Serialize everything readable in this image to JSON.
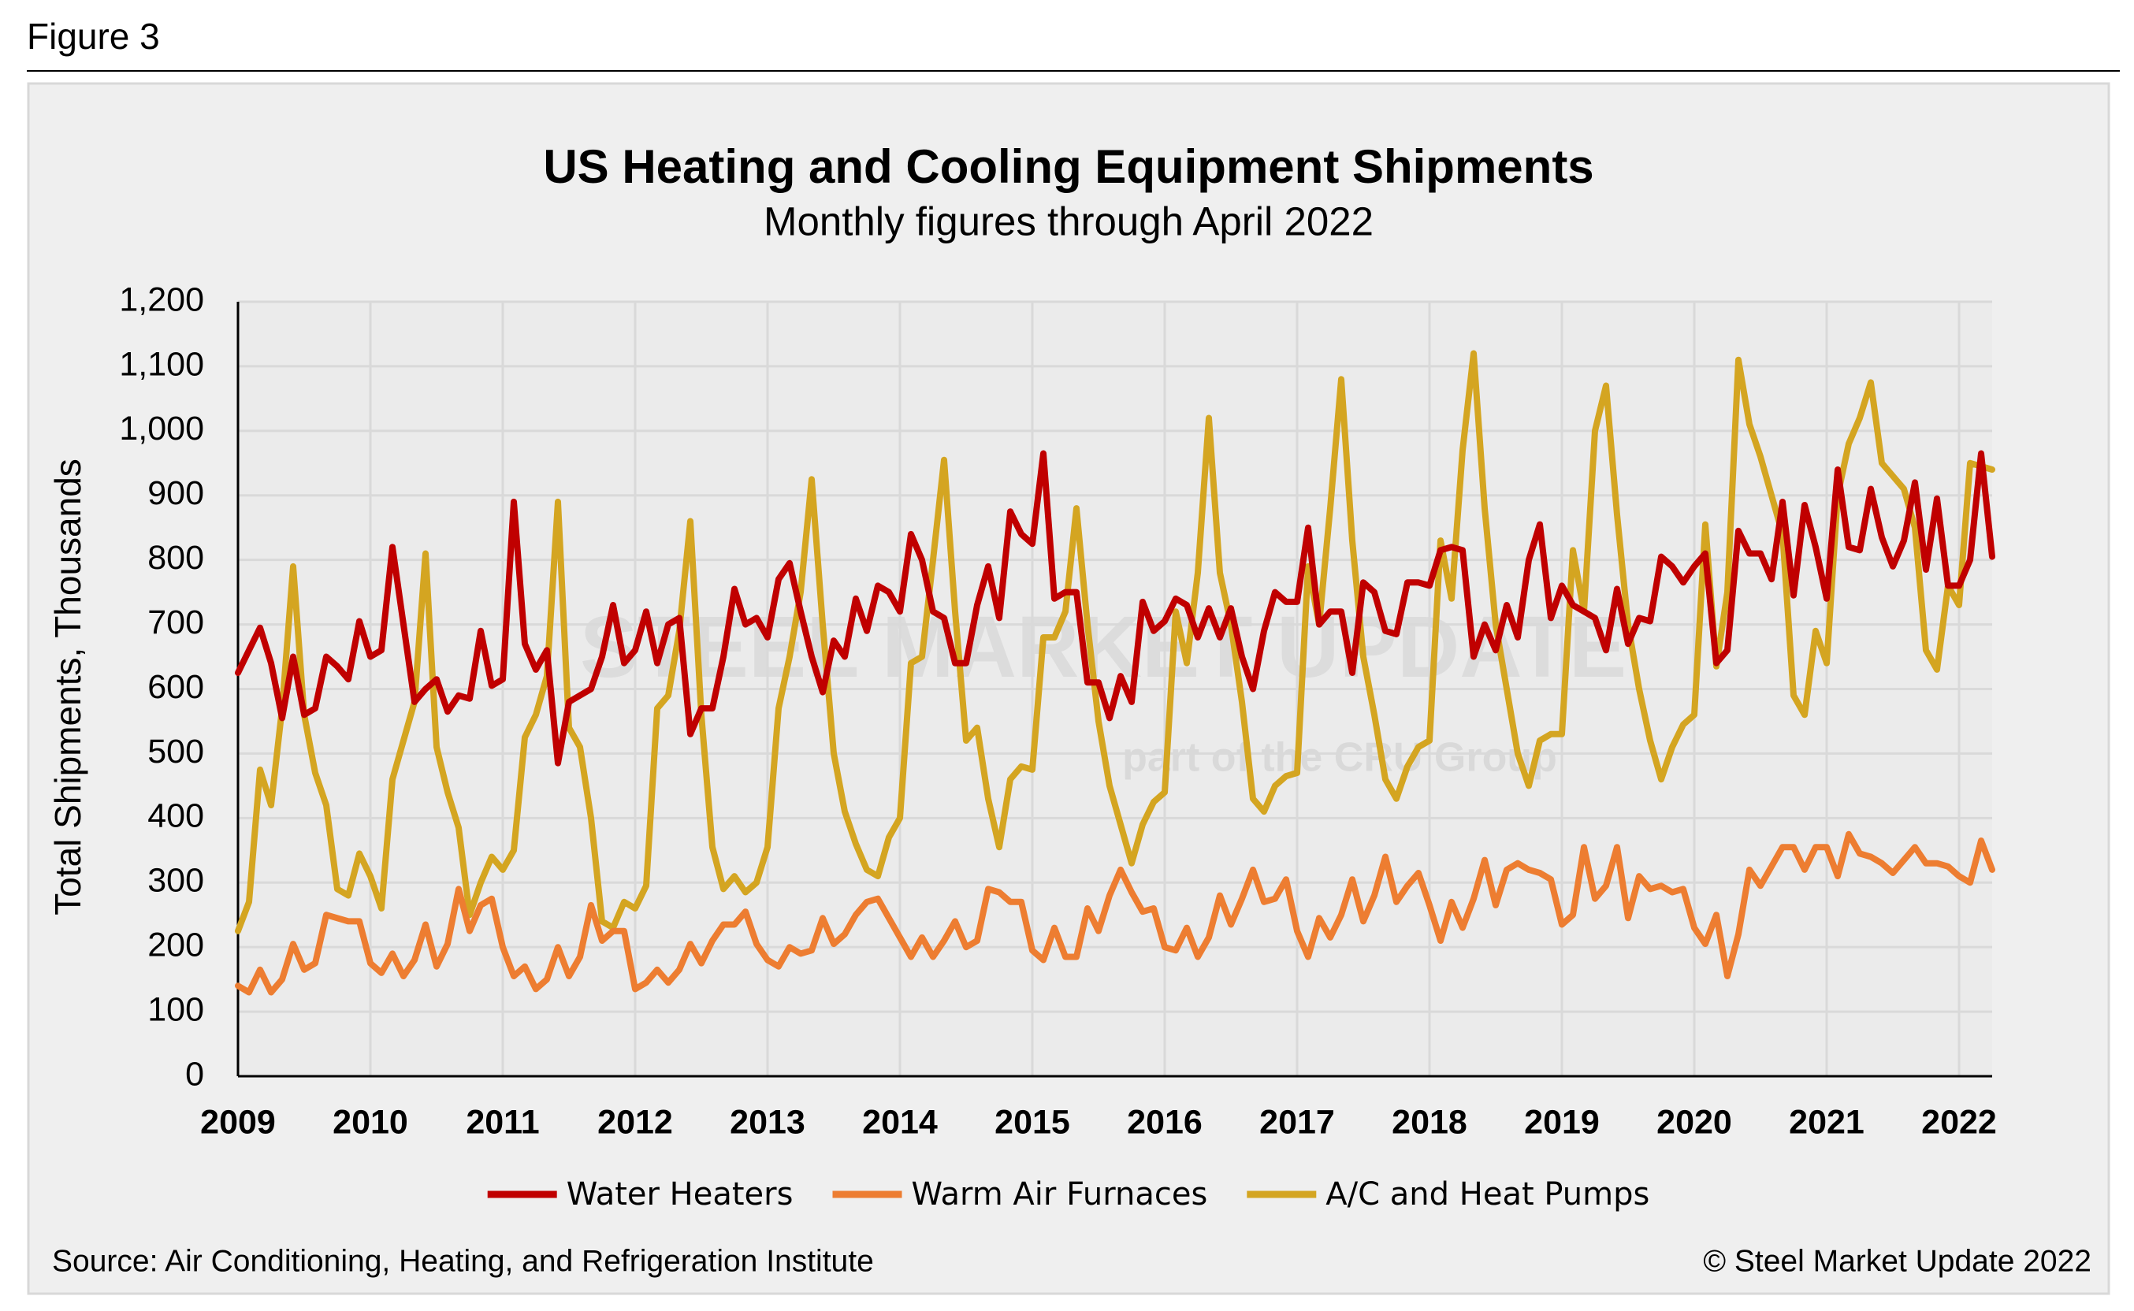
{
  "figure_label": "Figure 3",
  "chart_data": {
    "type": "line",
    "title": "US Heating and Cooling Equipment Shipments",
    "subtitle": "Monthly figures through April 2022",
    "y_axis_label": "Total Shipments, Thousands",
    "source": "Source: Air Conditioning, Heating, and Refrigeration Institute",
    "copyright": "© Steel Market Update 2022",
    "watermark": [
      "STEEL MARKET UPDATE",
      "part of the CRU Group"
    ],
    "categories": [
      "2009",
      null,
      null,
      null,
      null,
      null,
      null,
      null,
      null,
      null,
      null,
      null,
      "2010",
      null,
      null,
      null,
      null,
      null,
      null,
      null,
      null,
      null,
      null,
      null,
      "2011",
      null,
      null,
      null,
      null,
      null,
      null,
      null,
      null,
      null,
      null,
      null,
      "2012",
      null,
      null,
      null,
      null,
      null,
      null,
      null,
      null,
      null,
      null,
      null,
      "2013",
      null,
      null,
      null,
      null,
      null,
      null,
      null,
      null,
      null,
      null,
      null,
      "2014",
      null,
      null,
      null,
      null,
      null,
      null,
      null,
      null,
      null,
      null,
      null,
      "2015",
      null,
      null,
      null,
      null,
      null,
      null,
      null,
      null,
      null,
      null,
      null,
      "2016",
      null,
      null,
      null,
      null,
      null,
      null,
      null,
      null,
      null,
      null,
      null,
      "2017",
      null,
      null,
      null,
      null,
      null,
      null,
      null,
      null,
      null,
      null,
      null,
      "2018",
      null,
      null,
      null,
      null,
      null,
      null,
      null,
      null,
      null,
      null,
      null,
      "2019",
      null,
      null,
      null,
      null,
      null,
      null,
      null,
      null,
      null,
      null,
      null,
      "2020",
      null,
      null,
      null,
      null,
      null,
      null,
      null,
      null,
      null,
      null,
      null,
      "2021",
      null,
      null,
      null,
      null,
      null,
      null,
      null,
      null,
      null,
      null,
      null,
      "2022",
      null,
      null,
      null
    ],
    "series": [
      {
        "name": "Water Heaters",
        "color": "#c00000",
        "values": [
          625,
          660,
          695,
          640,
          555,
          650,
          560,
          570,
          650,
          635,
          615,
          705,
          650,
          660,
          820,
          700,
          580,
          600,
          615,
          565,
          590,
          585,
          690,
          605,
          615,
          890,
          670,
          630,
          660,
          485,
          580,
          590,
          600,
          650,
          730,
          640,
          660,
          720,
          640,
          700,
          710,
          530,
          570,
          570,
          650,
          755,
          700,
          710,
          680,
          770,
          795,
          720,
          650,
          595,
          675,
          650,
          740,
          690,
          760,
          750,
          720,
          840,
          800,
          720,
          710,
          640,
          640,
          730,
          790,
          710,
          875,
          840,
          825,
          965,
          740,
          750,
          750,
          610,
          610,
          555,
          620,
          580,
          735,
          690,
          705,
          740,
          730,
          680,
          725,
          680,
          725,
          650,
          600,
          690,
          750,
          735,
          735,
          850,
          700,
          720,
          720,
          625,
          765,
          750,
          690,
          685,
          765,
          765,
          760,
          815,
          820,
          815,
          650,
          700,
          660,
          730,
          680,
          800,
          855,
          710,
          760,
          730,
          720,
          710,
          660,
          755,
          670,
          710,
          705,
          805,
          790,
          765,
          790,
          810,
          640,
          660,
          845,
          810,
          810,
          770,
          890,
          745,
          885,
          820,
          740,
          940,
          820,
          815,
          910,
          835,
          790,
          830,
          920,
          785,
          895,
          760,
          760,
          800,
          965,
          805
        ]
      },
      {
        "name": "Warm Air Furnaces",
        "color": "#ed7d31",
        "values": [
          140,
          130,
          165,
          130,
          150,
          205,
          165,
          175,
          250,
          245,
          240,
          240,
          175,
          160,
          190,
          155,
          180,
          235,
          170,
          205,
          290,
          225,
          265,
          275,
          200,
          155,
          170,
          135,
          150,
          200,
          155,
          185,
          265,
          210,
          225,
          225,
          135,
          145,
          165,
          145,
          165,
          205,
          175,
          210,
          235,
          235,
          255,
          205,
          180,
          170,
          200,
          190,
          195,
          245,
          205,
          220,
          250,
          270,
          275,
          245,
          215,
          185,
          215,
          185,
          210,
          240,
          200,
          210,
          290,
          285,
          270,
          270,
          195,
          180,
          230,
          185,
          185,
          260,
          225,
          280,
          320,
          285,
          255,
          260,
          200,
          195,
          230,
          185,
          215,
          280,
          235,
          275,
          320,
          270,
          275,
          305,
          225,
          185,
          245,
          215,
          250,
          305,
          240,
          280,
          340,
          270,
          295,
          315,
          265,
          210,
          270,
          230,
          275,
          335,
          265,
          320,
          330,
          320,
          315,
          305,
          235,
          250,
          355,
          275,
          295,
          355,
          245,
          310,
          290,
          295,
          285,
          290,
          230,
          205,
          250,
          155,
          220,
          320,
          295,
          325,
          355,
          355,
          320,
          355,
          355,
          310,
          375,
          345,
          340,
          330,
          315,
          335,
          355,
          330,
          330,
          325,
          310,
          300,
          365,
          320
        ]
      },
      {
        "name": "A/C and Heat Pumps",
        "color": "#d4a521",
        "values": [
          225,
          270,
          475,
          420,
          570,
          790,
          560,
          470,
          420,
          290,
          280,
          345,
          310,
          260,
          460,
          520,
          580,
          810,
          510,
          440,
          385,
          250,
          300,
          340,
          320,
          350,
          525,
          560,
          620,
          890,
          540,
          510,
          400,
          240,
          230,
          270,
          260,
          295,
          570,
          590,
          690,
          860,
          560,
          355,
          290,
          310,
          285,
          300,
          355,
          570,
          650,
          750,
          925,
          700,
          500,
          410,
          360,
          320,
          310,
          370,
          400,
          640,
          650,
          800,
          955,
          720,
          520,
          540,
          430,
          355,
          460,
          480,
          475,
          680,
          680,
          720,
          880,
          700,
          550,
          450,
          390,
          330,
          390,
          425,
          440,
          720,
          640,
          780,
          1020,
          780,
          700,
          580,
          430,
          410,
          450,
          465,
          470,
          790,
          700,
          880,
          1080,
          830,
          650,
          560,
          460,
          430,
          480,
          510,
          520,
          830,
          740,
          970,
          1120,
          880,
          700,
          600,
          500,
          450,
          520,
          530,
          530,
          815,
          720,
          1000,
          1070,
          870,
          700,
          600,
          520,
          460,
          510,
          545,
          560,
          855,
          635,
          750,
          1110,
          1010,
          960,
          900,
          840,
          590,
          560,
          690,
          640,
          900,
          980,
          1020,
          1075,
          950,
          930,
          910,
          850,
          660,
          630,
          760,
          730,
          950,
          945,
          940
        ]
      }
    ],
    "ylim": [
      0,
      1200
    ],
    "yticks": [
      0,
      100,
      200,
      300,
      400,
      500,
      600,
      700,
      800,
      900,
      {
        "value": 1000,
        "label": "1,000"
      },
      {
        "value": 1100,
        "label": "1,100"
      },
      {
        "value": 1200,
        "label": "1,200"
      }
    ],
    "grid": true,
    "legend": "bottom"
  }
}
